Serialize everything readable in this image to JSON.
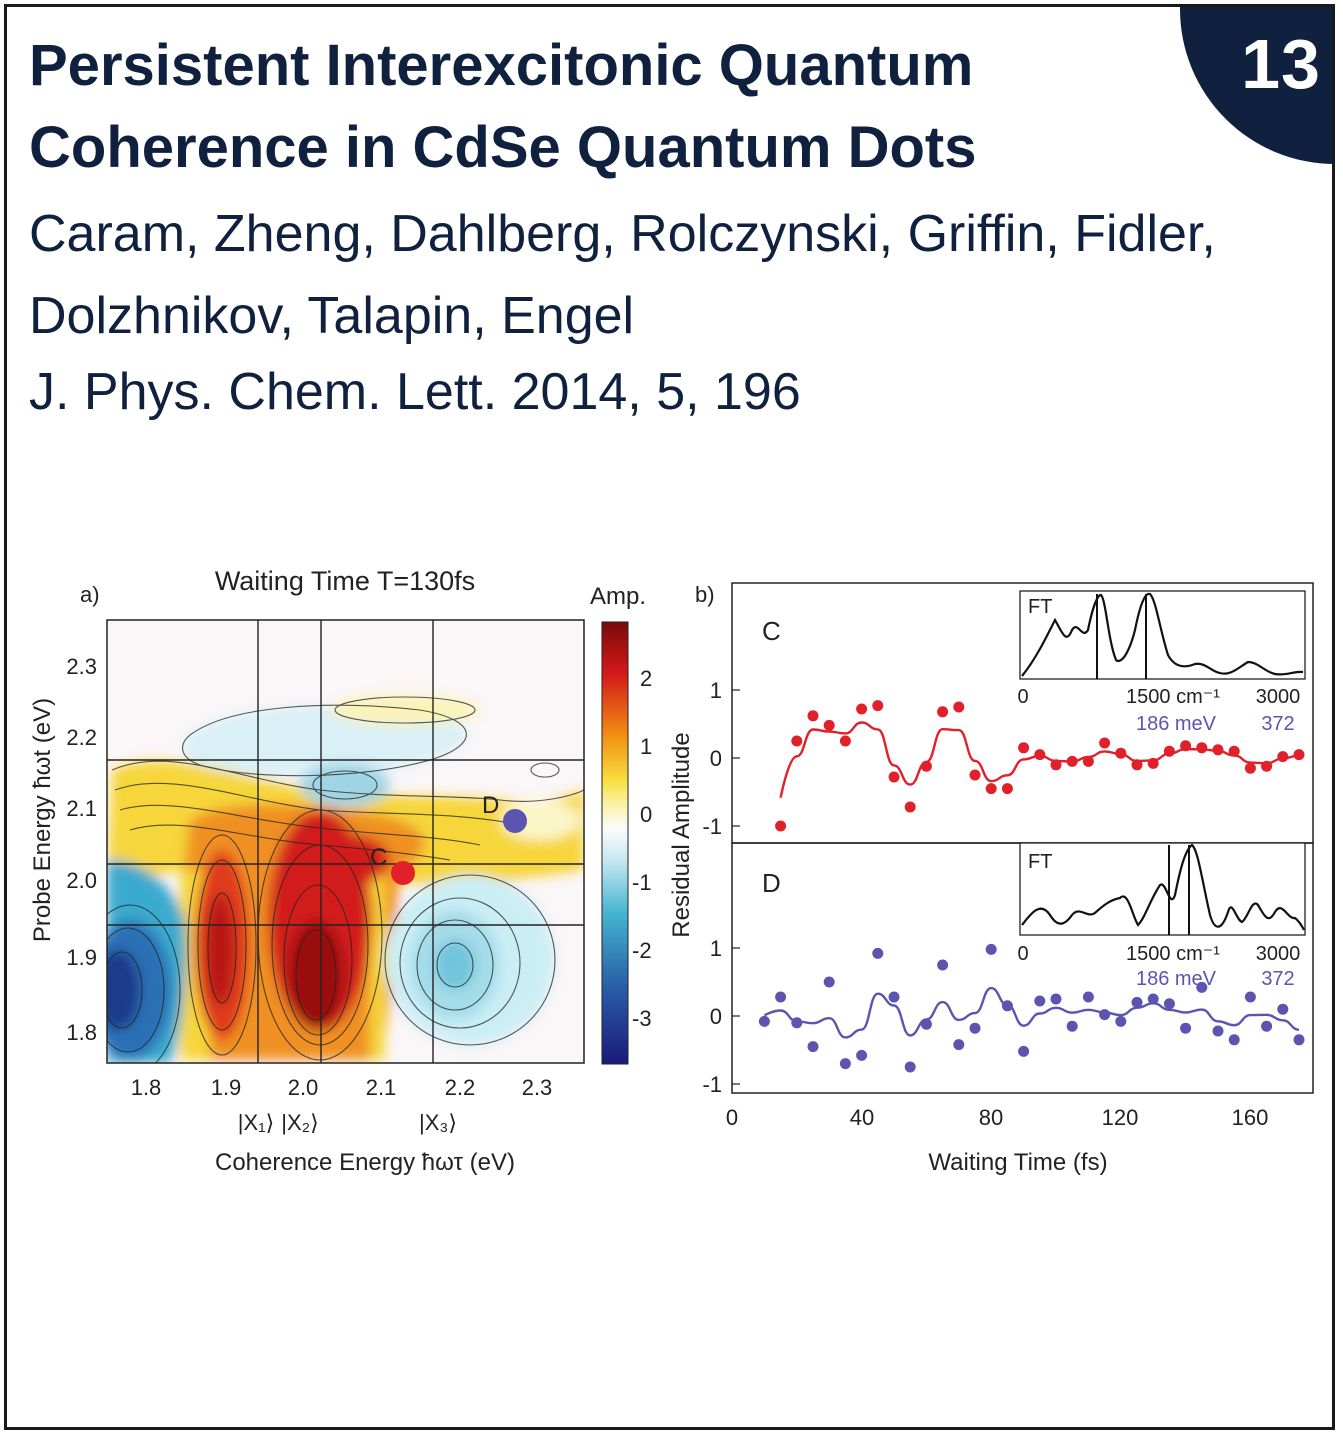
{
  "badge": {
    "number": "13"
  },
  "header": {
    "title": "Persistent Interexcitonic Quantum Coherence in CdSe Quantum Dots",
    "authors": "Caram, Zheng, Dahlberg, Rolczynski, Griffin, Fidler, Dolzhnikov, Talapin, Engel",
    "journal": "J. Phys. Chem. Lett. 2014, 5, 196"
  },
  "colors": {
    "navy": "#10213f",
    "red_series": "#e0202a",
    "blue_series": "#5b55b0"
  },
  "figure": {
    "panel_a": {
      "label": "a)",
      "title": "Waiting Time T=130fs",
      "colorbar_title": "Amp.",
      "colorbar_ticks": [
        "2",
        "1",
        "0",
        "-1",
        "-2",
        "-3"
      ],
      "xlabel": "Coherence Energy ħωτ (eV)",
      "ylabel": "Probe Energy ħωt (eV)",
      "xticks": [
        "1.8",
        "1.9",
        "2.0",
        "2.1",
        "2.2",
        "2.3"
      ],
      "yticks": [
        "2.3",
        "2.2",
        "2.1",
        "2.0",
        "1.9",
        "1.8"
      ],
      "state_labels": [
        "|X₁⟩",
        "|X₂⟩",
        "|X₃⟩"
      ],
      "point_c_label": "C",
      "point_d_label": "D"
    },
    "panel_b": {
      "label": "b)",
      "ylabel": "Residual Amplitude",
      "xlabel": "Waiting Time (fs)",
      "xticks": [
        "0",
        "40",
        "80",
        "120",
        "160"
      ],
      "top": {
        "label": "C",
        "yticks": [
          "1",
          "0",
          "-1"
        ],
        "inset": {
          "label": "FT",
          "ticks": [
            "0",
            "1500 cm⁻¹",
            "3000"
          ],
          "energy_ticks": [
            "186 meV",
            "372"
          ]
        }
      },
      "bottom": {
        "label": "D",
        "yticks": [
          "1",
          "0",
          "-1"
        ],
        "inset": {
          "label": "FT",
          "ticks": [
            "0",
            "1500 cm⁻¹",
            "3000"
          ],
          "energy_ticks": [
            "186 meV",
            "372"
          ]
        }
      }
    }
  },
  "chart_data": [
    {
      "type": "heatmap",
      "title": "Waiting Time T=130fs",
      "xlabel": "Coherence Energy ħωτ (eV)",
      "ylabel": "Probe Energy ħωt (eV)",
      "xlim": [
        1.75,
        2.36
      ],
      "ylim": [
        1.75,
        2.36
      ],
      "colorbar": {
        "label": "Amp.",
        "range": [
          -3.6,
          2.8
        ]
      },
      "grid_lines_x": [
        1.94,
        2.02,
        2.17
      ],
      "grid_lines_y": [
        1.94,
        2.02,
        2.17
      ],
      "points": [
        {
          "label": "C",
          "x": 2.13,
          "y": 2.01
        },
        {
          "label": "D",
          "x": 2.27,
          "y": 2.08
        }
      ]
    },
    {
      "type": "scatter",
      "xlabel": "Waiting Time (fs)",
      "ylabel": "Residual Amplitude",
      "xlim": [
        0,
        178
      ],
      "ylim": [
        -1.1,
        1.0
      ],
      "series": [
        {
          "name": "C",
          "points": [
            [
              15,
              -1.0
            ],
            [
              20,
              0.25
            ],
            [
              25,
              0.62
            ],
            [
              30,
              0.48
            ],
            [
              35,
              0.25
            ],
            [
              40,
              0.72
            ],
            [
              45,
              0.77
            ],
            [
              50,
              -0.28
            ],
            [
              55,
              -0.72
            ],
            [
              60,
              -0.12
            ],
            [
              65,
              0.68
            ],
            [
              70,
              0.75
            ],
            [
              75,
              -0.25
            ],
            [
              80,
              -0.45
            ],
            [
              85,
              -0.45
            ],
            [
              90,
              0.15
            ],
            [
              95,
              0.05
            ],
            [
              100,
              -0.1
            ],
            [
              105,
              -0.05
            ],
            [
              110,
              -0.05
            ],
            [
              115,
              0.22
            ],
            [
              120,
              0.07
            ],
            [
              125,
              -0.1
            ],
            [
              130,
              -0.08
            ],
            [
              135,
              0.1
            ],
            [
              140,
              0.18
            ],
            [
              145,
              0.15
            ],
            [
              150,
              0.12
            ],
            [
              155,
              0.1
            ],
            [
              160,
              -0.15
            ],
            [
              165,
              -0.12
            ],
            [
              170,
              0.02
            ],
            [
              175,
              0.05
            ]
          ]
        },
        {
          "name": "D",
          "points": [
            [
              10,
              -0.08
            ],
            [
              15,
              0.28
            ],
            [
              20,
              -0.1
            ],
            [
              25,
              -0.45
            ],
            [
              30,
              0.5
            ],
            [
              35,
              -0.7
            ],
            [
              40,
              -0.58
            ],
            [
              45,
              0.92
            ],
            [
              50,
              0.28
            ],
            [
              55,
              -0.75
            ],
            [
              60,
              -0.12
            ],
            [
              65,
              0.75
            ],
            [
              70,
              -0.42
            ],
            [
              75,
              -0.18
            ],
            [
              80,
              0.98
            ],
            [
              85,
              0.15
            ],
            [
              90,
              -0.52
            ],
            [
              95,
              0.22
            ],
            [
              100,
              0.25
            ],
            [
              105,
              -0.15
            ],
            [
              110,
              0.28
            ],
            [
              115,
              0.02
            ],
            [
              120,
              -0.08
            ],
            [
              125,
              0.2
            ],
            [
              130,
              0.25
            ],
            [
              135,
              0.18
            ],
            [
              140,
              -0.18
            ],
            [
              145,
              0.42
            ],
            [
              150,
              -0.22
            ],
            [
              155,
              -0.35
            ],
            [
              160,
              0.28
            ],
            [
              165,
              -0.15
            ],
            [
              170,
              0.1
            ],
            [
              175,
              -0.35
            ]
          ]
        }
      ]
    }
  ]
}
